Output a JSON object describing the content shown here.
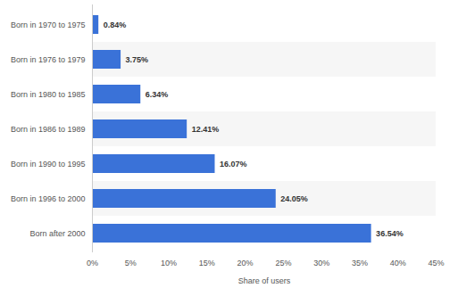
{
  "chart_data": {
    "type": "bar",
    "orientation": "horizontal",
    "categories": [
      "Born in 1970 to 1975",
      "Born in 1976 to 1979",
      "Born in 1980 to 1985",
      "Born in 1986 to 1989",
      "Born in 1990 to 1995",
      "Born in 1996 to 2000",
      "Born after 2000"
    ],
    "values": [
      0.84,
      3.75,
      6.34,
      12.41,
      16.07,
      24.05,
      36.54
    ],
    "value_labels": [
      "0.84%",
      "3.75%",
      "6.34%",
      "12.41%",
      "16.07%",
      "24.05%",
      "36.54%"
    ],
    "data_labels": true,
    "color": "#3a72d8",
    "x_label": "Share of users",
    "xlim": [
      0,
      45
    ],
    "xticks": [
      {
        "value": 0,
        "label": "0%"
      },
      {
        "value": 5,
        "label": "5%"
      },
      {
        "value": 10,
        "label": "10%"
      },
      {
        "value": 15,
        "label": "15%"
      },
      {
        "value": 20,
        "label": "20%"
      },
      {
        "value": 25,
        "label": "25%"
      },
      {
        "value": 30,
        "label": "30%"
      },
      {
        "value": 35,
        "label": "35%"
      },
      {
        "value": 40,
        "label": "40%"
      },
      {
        "value": 45,
        "label": "45%"
      }
    ],
    "grid": false
  }
}
